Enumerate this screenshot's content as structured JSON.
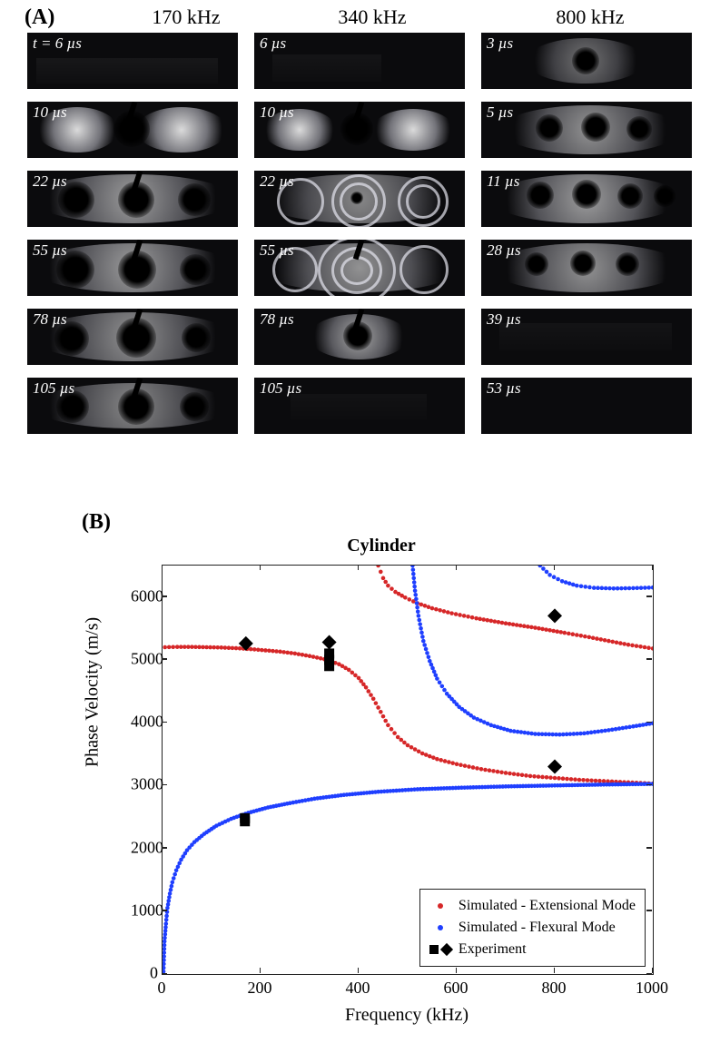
{
  "panelA": {
    "label": "(A)",
    "columns": [
      {
        "header": "170 kHz",
        "times": [
          "t = 6 µs",
          "10 µs",
          "22 µs",
          "55 µs",
          "78 µs",
          "105 µs"
        ]
      },
      {
        "header": "340 kHz",
        "times": [
          "6 µs",
          "10 µs",
          "22 µs",
          "55 µs",
          "78 µs",
          "105 µs"
        ]
      },
      {
        "header": "800 kHz",
        "times": [
          "3 µs",
          "5 µs",
          "11 µs",
          "28 µs",
          "39 µs",
          "53 µs"
        ]
      }
    ]
  },
  "panelB": {
    "label": "(B)",
    "title": "Cylinder",
    "xlabel": "Frequency (kHz)",
    "ylabel": "Phase Velocity (m/s)",
    "xlim": [
      0,
      1000
    ],
    "ylim": [
      0,
      6500
    ],
    "xticks": [
      0,
      200,
      400,
      600,
      800,
      1000
    ],
    "yticks": [
      0,
      1000,
      2000,
      3000,
      4000,
      5000,
      6000
    ],
    "colors": {
      "extensional": "#d62728",
      "flexural": "#1f3fff",
      "experiment": "#000000",
      "axis": "#222222",
      "background": "#ffffff"
    },
    "marker_radius": 2.3,
    "legend": {
      "items": [
        {
          "swatch": "dot-red",
          "label": "Simulated - Extensional Mode"
        },
        {
          "swatch": "dot-blue",
          "label": "Simulated - Flexural Mode"
        },
        {
          "swatch": "exp",
          "label": "Experiment"
        }
      ]
    },
    "series_red": [
      [
        5,
        5200
      ],
      [
        30,
        5205
      ],
      [
        60,
        5205
      ],
      [
        90,
        5200
      ],
      [
        120,
        5195
      ],
      [
        150,
        5185
      ],
      [
        180,
        5170
      ],
      [
        210,
        5150
      ],
      [
        240,
        5130
      ],
      [
        270,
        5100
      ],
      [
        300,
        5060
      ],
      [
        330,
        5010
      ],
      [
        360,
        4930
      ],
      [
        380,
        4840
      ],
      [
        400,
        4710
      ],
      [
        415,
        4560
      ],
      [
        430,
        4380
      ],
      [
        445,
        4170
      ],
      [
        460,
        3960
      ],
      [
        480,
        3770
      ],
      [
        500,
        3640
      ],
      [
        530,
        3510
      ],
      [
        560,
        3420
      ],
      [
        600,
        3340
      ],
      [
        650,
        3260
      ],
      [
        700,
        3200
      ],
      [
        750,
        3150
      ],
      [
        800,
        3120
      ],
      [
        850,
        3090
      ],
      [
        900,
        3070
      ],
      [
        950,
        3050
      ],
      [
        1000,
        3030
      ]
    ],
    "series_red2": [
      [
        440,
        6500
      ],
      [
        445,
        6400
      ],
      [
        450,
        6300
      ],
      [
        460,
        6180
      ],
      [
        475,
        6080
      ],
      [
        495,
        5990
      ],
      [
        520,
        5900
      ],
      [
        550,
        5820
      ],
      [
        590,
        5740
      ],
      [
        640,
        5660
      ],
      [
        700,
        5580
      ],
      [
        760,
        5510
      ],
      [
        820,
        5430
      ],
      [
        870,
        5360
      ],
      [
        910,
        5300
      ],
      [
        950,
        5240
      ],
      [
        1000,
        5180
      ]
    ],
    "series_blue": [
      [
        2,
        40
      ],
      [
        4,
        520
      ],
      [
        7,
        800
      ],
      [
        10,
        1050
      ],
      [
        15,
        1280
      ],
      [
        20,
        1460
      ],
      [
        28,
        1650
      ],
      [
        38,
        1820
      ],
      [
        50,
        1970
      ],
      [
        65,
        2100
      ],
      [
        85,
        2230
      ],
      [
        110,
        2360
      ],
      [
        140,
        2470
      ],
      [
        175,
        2565
      ],
      [
        215,
        2650
      ],
      [
        260,
        2720
      ],
      [
        310,
        2790
      ],
      [
        370,
        2850
      ],
      [
        440,
        2900
      ],
      [
        520,
        2940
      ],
      [
        610,
        2965
      ],
      [
        700,
        2985
      ],
      [
        800,
        3000
      ],
      [
        900,
        3015
      ],
      [
        1000,
        3025
      ]
    ],
    "series_blue2": [
      [
        510,
        6500
      ],
      [
        515,
        6100
      ],
      [
        522,
        5700
      ],
      [
        532,
        5300
      ],
      [
        545,
        4980
      ],
      [
        560,
        4700
      ],
      [
        580,
        4460
      ],
      [
        605,
        4250
      ],
      [
        635,
        4080
      ],
      [
        670,
        3960
      ],
      [
        710,
        3870
      ],
      [
        760,
        3820
      ],
      [
        810,
        3810
      ],
      [
        860,
        3830
      ],
      [
        910,
        3880
      ],
      [
        960,
        3940
      ],
      [
        1000,
        3990
      ]
    ],
    "series_blue3": [
      [
        770,
        6500
      ],
      [
        790,
        6350
      ],
      [
        815,
        6250
      ],
      [
        845,
        6180
      ],
      [
        880,
        6145
      ],
      [
        920,
        6135
      ],
      [
        960,
        6140
      ],
      [
        1000,
        6150
      ]
    ],
    "experiment_squares": [
      [
        168,
        2430
      ],
      [
        168,
        2480
      ],
      [
        340,
        4900
      ],
      [
        340,
        5000
      ],
      [
        340,
        5100
      ]
    ],
    "experiment_diamonds": [
      [
        170,
        5260
      ],
      [
        340,
        5280
      ],
      [
        800,
        3300
      ],
      [
        800,
        5700
      ]
    ]
  }
}
